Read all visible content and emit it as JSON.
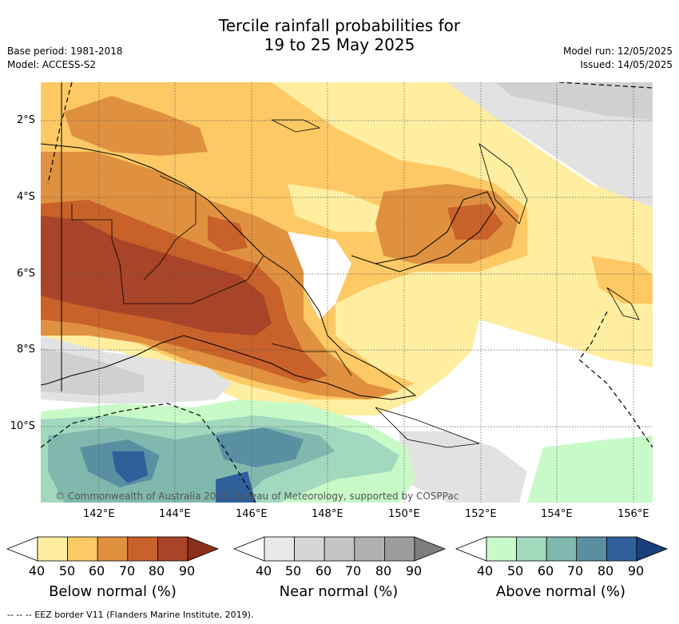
{
  "title_line1": "Tercile rainfall probabilities for",
  "title_line2": "19 to 25 May 2025",
  "base_period": "Base period: 1981-2018",
  "model": "Model: ACCESS-S2",
  "model_run": "Model run: 12/05/2025",
  "issued": "Issued: 14/05/2025",
  "map": {
    "lat_labels": [
      "2°S",
      "4°S",
      "6°S",
      "8°S",
      "10°S"
    ],
    "lon_labels": [
      "142°E",
      "144°E",
      "146°E",
      "148°E",
      "150°E",
      "152°E",
      "154°E",
      "156°E"
    ],
    "credit": "© Commonwealth of Australia 2025, Bureau of Meteorology, supported by COSPPac"
  },
  "colorbars": [
    {
      "title": "Below normal (%)",
      "ticks": [
        "40",
        "50",
        "60",
        "70",
        "80",
        "90"
      ],
      "colors": [
        "#ffffff",
        "#ffeea0",
        "#fdc965",
        "#e0913f",
        "#c8612a",
        "#a84428",
        "#8a2f1c"
      ]
    },
    {
      "title": "Near normal (%)",
      "ticks": [
        "40",
        "50",
        "60",
        "70",
        "80",
        "90"
      ],
      "colors": [
        "#ffffff",
        "#e8e8e8",
        "#d6d6d6",
        "#c4c4c4",
        "#b0b0b0",
        "#9c9c9c",
        "#7e7e7e"
      ]
    },
    {
      "title": "Above normal (%)",
      "ticks": [
        "40",
        "50",
        "60",
        "70",
        "80",
        "90"
      ],
      "colors": [
        "#ffffff",
        "#c8fac8",
        "#a2d8be",
        "#80b8ae",
        "#5a8fa2",
        "#30609a",
        "#1a3f7a"
      ]
    }
  ],
  "footnote": "--  --  -- EEZ border V11 (Flanders Marine Institute, 2019)."
}
